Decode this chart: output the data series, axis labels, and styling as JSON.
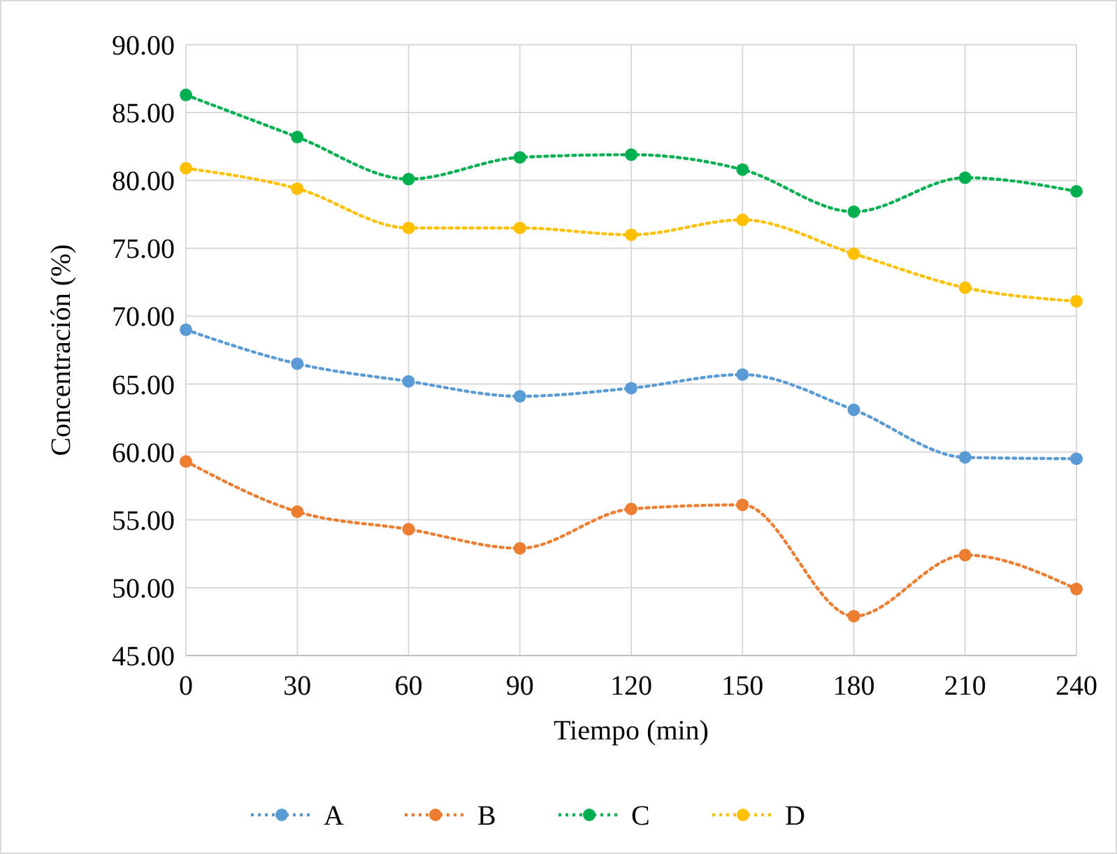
{
  "chart_data": {
    "type": "line",
    "xlabel": "Tiempo (min)",
    "ylabel": "Concentración (%)",
    "x": [
      0,
      30,
      60,
      90,
      120,
      150,
      180,
      210,
      240
    ],
    "series": [
      {
        "name": "A",
        "color": "#5b9bd5",
        "values": [
          69.0,
          66.5,
          65.2,
          64.1,
          64.7,
          65.7,
          63.1,
          59.6,
          59.5
        ]
      },
      {
        "name": "B",
        "color": "#ed7d31",
        "values": [
          59.3,
          55.6,
          54.3,
          52.9,
          55.8,
          56.1,
          47.9,
          52.4,
          49.9
        ]
      },
      {
        "name": "C",
        "color": "#00b050",
        "values": [
          86.3,
          83.2,
          80.1,
          81.7,
          81.9,
          80.8,
          77.7,
          80.2,
          79.2
        ]
      },
      {
        "name": "D",
        "color": "#ffc000",
        "values": [
          80.9,
          79.4,
          76.5,
          76.5,
          76.0,
          77.1,
          74.6,
          72.1,
          71.1
        ]
      }
    ],
    "xlim": [
      0,
      240
    ],
    "xticks": [
      0,
      30,
      60,
      90,
      120,
      150,
      180,
      210,
      240
    ],
    "ylim": [
      45,
      90
    ],
    "yticks": [
      {
        "value": 45,
        "label": "45.00"
      },
      {
        "value": 50,
        "label": "50.00"
      },
      {
        "value": 55,
        "label": "55.00"
      },
      {
        "value": 60,
        "label": "60.00"
      },
      {
        "value": 65,
        "label": "65.00"
      },
      {
        "value": 70,
        "label": "70.00"
      },
      {
        "value": 75,
        "label": "75.00"
      },
      {
        "value": 80,
        "label": "80.00"
      },
      {
        "value": 85,
        "label": "85.00"
      },
      {
        "value": 90,
        "label": "90.00"
      }
    ],
    "grid": true,
    "legend": "bottom",
    "marker": "circle",
    "line_style": "dotted"
  }
}
